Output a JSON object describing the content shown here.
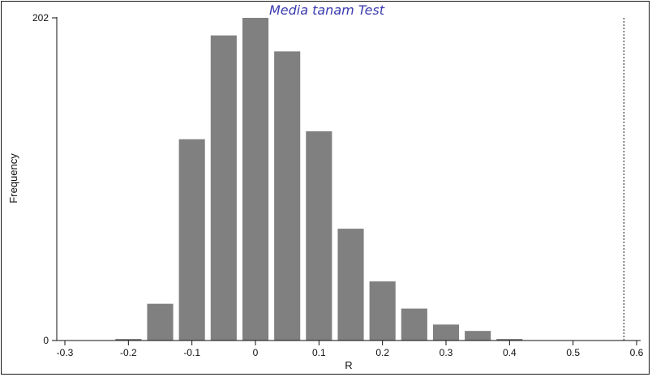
{
  "chart_data": {
    "type": "bar",
    "title": "Media tanam Test",
    "xlabel": "R",
    "ylabel": "Frequency",
    "xlim": [
      -0.3,
      0.6
    ],
    "ylim": [
      0,
      202
    ],
    "x_ticks": [
      "-0.3",
      "-0.2",
      "-0.1",
      "0",
      "0.1",
      "0.2",
      "0.3",
      "0.4",
      "0.5",
      "0.6"
    ],
    "y_ticks": [
      "0",
      "202"
    ],
    "bin_width": 0.05,
    "bins": [
      {
        "x": -0.2,
        "value": 1
      },
      {
        "x": -0.15,
        "value": 23
      },
      {
        "x": -0.1,
        "value": 126
      },
      {
        "x": -0.05,
        "value": 191
      },
      {
        "x": 0.0,
        "value": 202
      },
      {
        "x": 0.05,
        "value": 181
      },
      {
        "x": 0.1,
        "value": 131
      },
      {
        "x": 0.15,
        "value": 70
      },
      {
        "x": 0.2,
        "value": 37
      },
      {
        "x": 0.25,
        "value": 20
      },
      {
        "x": 0.3,
        "value": 10
      },
      {
        "x": 0.35,
        "value": 6
      },
      {
        "x": 0.4,
        "value": 1
      }
    ],
    "observed_line_x": 0.58,
    "grid": false,
    "bar_color": "#808080"
  }
}
